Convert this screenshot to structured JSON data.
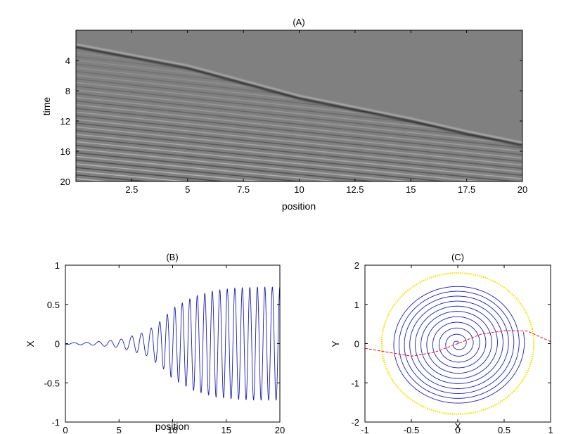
{
  "chart_data": [
    {
      "panel": "A",
      "type": "heatmap",
      "title": "(A)",
      "xlabel": "position",
      "ylabel": "time",
      "xlim": [
        0,
        20
      ],
      "ylim": [
        0,
        20
      ],
      "y_reversed": true,
      "xticks": [
        2.5,
        5,
        7.5,
        10,
        12.5,
        15,
        17.5,
        20
      ],
      "yticks": [
        4,
        8,
        12,
        16,
        20
      ],
      "xtick_labels": [
        "2.5",
        "5",
        "7.5",
        "10",
        "12.5",
        "15",
        "17.5",
        "20"
      ],
      "ytick_labels": [
        "4",
        "8",
        "12",
        "16",
        "20"
      ],
      "colormap": "gray",
      "background": "#808080",
      "wavefront": [
        [
          0,
          2.2
        ],
        [
          5,
          5.0
        ],
        [
          10,
          9.0
        ],
        [
          15,
          12.0
        ],
        [
          17.5,
          13.7
        ],
        [
          20,
          15.2
        ]
      ],
      "wavefront_color": "#000000",
      "wavefront_highlight": "#ffffff"
    },
    {
      "panel": "B",
      "type": "line",
      "title": "(B)",
      "xlabel": "position",
      "ylabel": "X",
      "xlim": [
        0,
        20
      ],
      "ylim": [
        -1,
        1
      ],
      "xticks": [
        0,
        5,
        10,
        15,
        20
      ],
      "yticks": [
        -1,
        -0.5,
        0,
        0.5,
        1
      ],
      "xtick_labels": [
        "0",
        "5",
        "10",
        "15",
        "20"
      ],
      "ytick_labels": [
        "-1",
        "-0.5",
        "0",
        "0.5",
        "1"
      ],
      "line_color": "#1c1cb4",
      "envelope": [
        [
          0,
          0.01
        ],
        [
          2.5,
          0.02
        ],
        [
          5,
          0.05
        ],
        [
          7.5,
          0.15
        ],
        [
          9,
          0.3
        ],
        [
          10,
          0.45
        ],
        [
          12,
          0.6
        ],
        [
          14,
          0.68
        ],
        [
          16,
          0.71
        ],
        [
          18,
          0.72
        ],
        [
          20,
          0.72
        ]
      ],
      "peak_positions": [
        0.8,
        2.0,
        3.1,
        4.2,
        5.2,
        6.2,
        7.1,
        8.0,
        8.8,
        9.5,
        10.2,
        10.9,
        11.6,
        12.3,
        13.0,
        13.7,
        14.4,
        15.1,
        15.8,
        16.5,
        17.2,
        17.9,
        18.6,
        19.3
      ]
    },
    {
      "panel": "C",
      "type": "line",
      "title": "(C)",
      "xlabel": "X",
      "ylabel": "Y",
      "xlim": [
        -1,
        1
      ],
      "ylim": [
        -2,
        2
      ],
      "xticks": [
        -1,
        -0.5,
        0,
        0.5,
        1
      ],
      "yticks": [
        -2,
        -1,
        0,
        1,
        2
      ],
      "xtick_labels": [
        "-1",
        "-0.5",
        "0",
        "0.5",
        "1"
      ],
      "ytick_labels": [
        "-2",
        "-1",
        "0",
        "1",
        "2"
      ],
      "series": [
        {
          "kind": "spiral",
          "color": "#1c1cb4",
          "center": [
            0,
            0
          ],
          "max_amplitude": [
            0.72,
            1.55
          ],
          "tilt_deg": 12
        },
        {
          "kind": "limit-cycle",
          "color": "#f0e000",
          "style": "dotted",
          "center": [
            0,
            0
          ],
          "amplitude": [
            0.82,
            1.8
          ],
          "tilt_deg": 12
        },
        {
          "kind": "nullcline",
          "color": "#d81818",
          "style": "dashed",
          "points": [
            [
              -1,
              -0.12
            ],
            [
              -0.5,
              -0.32
            ],
            [
              -0.25,
              -0.22
            ],
            [
              0,
              0
            ],
            [
              0.25,
              0.24
            ],
            [
              0.5,
              0.33
            ],
            [
              0.75,
              0.32
            ],
            [
              1,
              0.05
            ]
          ]
        }
      ]
    }
  ]
}
